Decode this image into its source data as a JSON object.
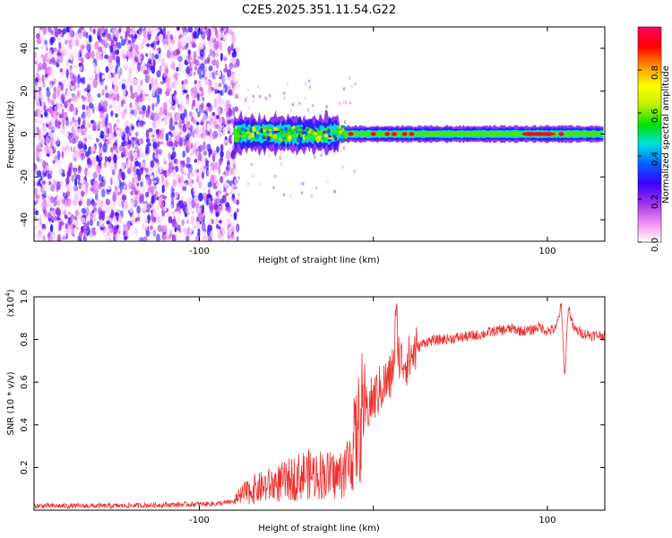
{
  "title": "C2E5.2025.351.11.54.G22",
  "chart_data": [
    {
      "type": "heatmap",
      "title": "C2E5.2025.351.11.54.G22",
      "xlabel": "Height of straight line (km)",
      "ylabel": "Frequency (Hz)",
      "xlim": [
        -195,
        133
      ],
      "ylim": [
        -50,
        50
      ],
      "xticks": [
        -100,
        0,
        100
      ],
      "xtick_labels": [
        "-100",
        "",
        "100"
      ],
      "yticks": [
        -40,
        -20,
        0,
        20,
        40
      ],
      "ytick_labels": [
        "-40",
        "-20",
        "0",
        "20",
        "40"
      ],
      "noise_region_x": [
        -195,
        -80
      ],
      "signal": {
        "center_frequency_hz": 0,
        "onset_x": -80,
        "bright_spots_x": [
          -13,
          0,
          8,
          12,
          18,
          22,
          90,
          95,
          100,
          108
        ]
      },
      "colorbar": {
        "label": "Normalized spectral amplitude",
        "range": [
          0.0,
          1.0
        ],
        "ticks": [
          0.0,
          0.2,
          0.4,
          0.6,
          0.8
        ],
        "tick_labels": [
          "0.0",
          "0.2",
          "0.4",
          "0.6",
          "0.8"
        ],
        "colors": [
          "#ffffff",
          "#f08cf0",
          "#9a30e8",
          "#3a00ff",
          "#0060ff",
          "#00e0e0",
          "#00e000",
          "#c0f000",
          "#ffff00",
          "#ff9000",
          "#ff0000",
          "#ff0060"
        ]
      }
    },
    {
      "type": "line",
      "xlabel": "Height of straight line (km)",
      "ylabel": "SNR (10 * v/v)",
      "scale_label": "(x10",
      "scale_exponent": "4",
      "scale_suffix": ")",
      "xlim": [
        -195,
        133
      ],
      "ylim": [
        0,
        1.0
      ],
      "xticks": [
        -100,
        0,
        100
      ],
      "xtick_labels": [
        "-100",
        "",
        "100"
      ],
      "yticks": [
        0.2,
        0.4,
        0.6,
        0.8,
        1.0
      ],
      "ytick_labels": [
        "0.2",
        "0.4",
        "0.6",
        "0.8",
        "1.0"
      ],
      "color": "#ee3030",
      "series": [
        {
          "name": "SNR",
          "x": [
            -195,
            -150,
            -120,
            -90,
            -80,
            -75,
            -70,
            -60,
            -50,
            -40,
            -30,
            -20,
            -15,
            -10,
            -5,
            0,
            5,
            10,
            12,
            13,
            15,
            20,
            25,
            30,
            40,
            50,
            60,
            70,
            80,
            85,
            90,
            95,
            100,
            105,
            108,
            110,
            112,
            115,
            120,
            125,
            133
          ],
          "y": [
            0.02,
            0.02,
            0.025,
            0.03,
            0.04,
            0.07,
            0.09,
            0.11,
            0.13,
            0.16,
            0.16,
            0.15,
            0.2,
            0.32,
            0.46,
            0.52,
            0.58,
            0.62,
            0.72,
            0.92,
            0.7,
            0.7,
            0.76,
            0.79,
            0.8,
            0.81,
            0.82,
            0.84,
            0.85,
            0.84,
            0.84,
            0.86,
            0.84,
            0.85,
            0.96,
            0.62,
            0.96,
            0.85,
            0.83,
            0.82,
            0.82
          ]
        }
      ],
      "grid": false
    }
  ]
}
